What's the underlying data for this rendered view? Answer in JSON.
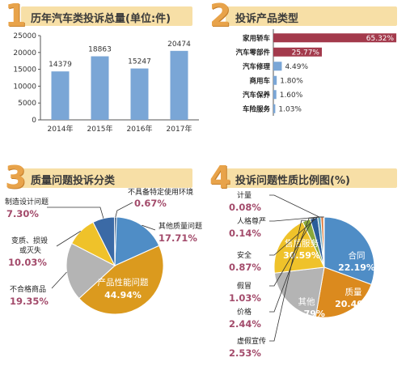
{
  "panels": [
    {
      "number": "1",
      "title": "历年汽车类投诉总量(单位:件)"
    },
    {
      "number": "2",
      "title": "投诉产品类型"
    },
    {
      "number": "3",
      "title": "质量问题投诉分类"
    },
    {
      "number": "4",
      "title": "投诉问题性质比例图(%)"
    }
  ],
  "colors": {
    "accent_number": "#e8a34a",
    "title_band": "#f7dfa6",
    "bar_blue": "#7aa6d6",
    "bar_red": "#a33a4c",
    "pct_text": "#a34b6b"
  },
  "chart_data": [
    {
      "type": "bar",
      "categories": [
        "2014年",
        "2015年",
        "2016年",
        "2017年"
      ],
      "values": [
        14379,
        18863,
        15247,
        20474
      ],
      "value_labels": [
        "14379",
        "18863",
        "15247",
        "20474"
      ],
      "ylim": [
        0,
        25000
      ],
      "yticks": [
        "0",
        "5000",
        "10000",
        "15000",
        "20000",
        "25000"
      ],
      "grid": false
    },
    {
      "type": "bar",
      "orientation": "horizontal",
      "categories": [
        "家用轿车",
        "汽车零部件",
        "汽车修理",
        "商用车",
        "汽车保养",
        "车险服务"
      ],
      "values": [
        65.32,
        25.77,
        4.49,
        1.8,
        1.6,
        1.03
      ],
      "value_labels": [
        "65.32%",
        "25.77%",
        "4.49%",
        "1.80%",
        "1.60%",
        "1.03%"
      ],
      "xlim": [
        0,
        70
      ]
    },
    {
      "type": "pie",
      "slices": [
        {
          "label": "其他质量问题",
          "value": 17.71,
          "pct": "17.71%",
          "color": "#4f8dc6"
        },
        {
          "label": "产品性能问题",
          "value": 44.94,
          "pct": "44.94%",
          "color": "#db9a1e"
        },
        {
          "label": "不合格商品",
          "value": 19.35,
          "pct": "19.35%",
          "color": "#b4b4b4"
        },
        {
          "label": "变质、损毁或灭失",
          "value": 10.03,
          "pct": "10.03%",
          "color": "#efc22a"
        },
        {
          "label": "制造设计问题",
          "value": 7.3,
          "pct": "7.30%",
          "color": "#3b6aa6"
        },
        {
          "label": "不具备特定使用环境",
          "value": 0.67,
          "pct": "0.67%",
          "color": "#2a4e7a"
        }
      ]
    },
    {
      "type": "pie",
      "slices": [
        {
          "label": "售后服务",
          "value": 30.59,
          "pct": "30.59%",
          "color": "#4f8dc6"
        },
        {
          "label": "合同",
          "value": 22.19,
          "pct": "22.19%",
          "color": "#db8a1e"
        },
        {
          "label": "质量",
          "value": 20.4,
          "pct": "20.40%",
          "color": "#b4b4b4"
        },
        {
          "label": "其他",
          "value": 19.79,
          "pct": "19.79%",
          "color": "#efc22a"
        },
        {
          "label": "虚假宣传",
          "value": 2.53,
          "pct": "2.53%",
          "color": "#8aa83a"
        },
        {
          "label": "价格",
          "value": 2.44,
          "pct": "2.44%",
          "color": "#2a5e9a"
        },
        {
          "label": "假冒",
          "value": 1.03,
          "pct": "1.03%",
          "color": "#5aa0b8"
        },
        {
          "label": "安全",
          "value": 0.87,
          "pct": "0.87%",
          "color": "#e07a3a"
        },
        {
          "label": "人格尊严",
          "value": 0.14,
          "pct": "0.14%",
          "color": "#9a4a8a"
        },
        {
          "label": "计量",
          "value": 0.08,
          "pct": "0.08%",
          "color": "#d24a4a"
        }
      ]
    }
  ]
}
